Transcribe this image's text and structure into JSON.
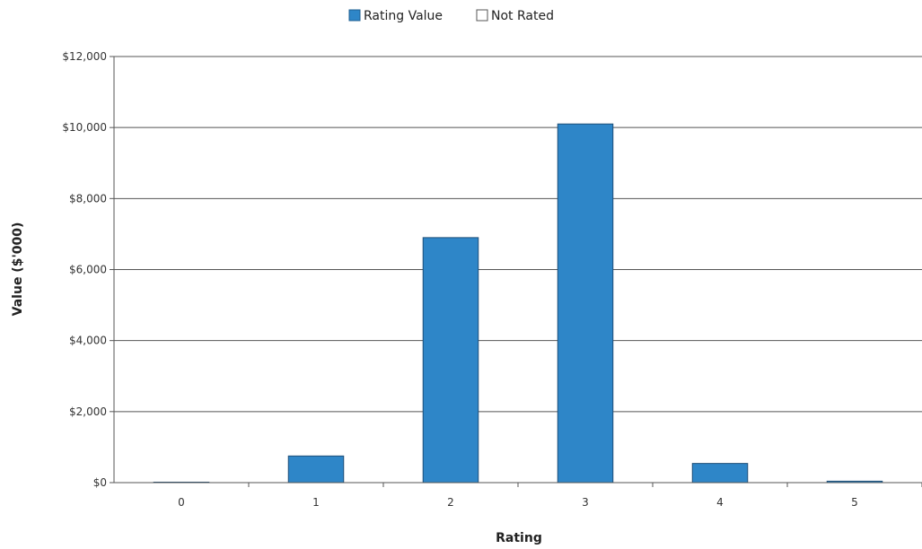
{
  "chart_data": {
    "type": "bar",
    "categories": [
      "0",
      "1",
      "2",
      "3",
      "4",
      "5"
    ],
    "series": [
      {
        "name": "Rating Value",
        "color": "#2e86c8",
        "values": [
          0,
          750,
          6900,
          10100,
          540,
          40
        ]
      },
      {
        "name": "Not Rated",
        "color": "#ffffff",
        "values": [
          0,
          0,
          0,
          0,
          0,
          0
        ]
      }
    ],
    "xlabel": "Rating",
    "ylabel": "Value ($'000)",
    "ylim": [
      0,
      12000
    ],
    "yticks": [
      {
        "value": 0,
        "label": "$0"
      },
      {
        "value": 2000,
        "label": "$2,000"
      },
      {
        "value": 4000,
        "label": "$4,000"
      },
      {
        "value": 6000,
        "label": "$6,000"
      },
      {
        "value": 8000,
        "label": "$8,000"
      },
      {
        "value": 10000,
        "label": "$10,000"
      },
      {
        "value": 12000,
        "label": "$12,000"
      }
    ],
    "grid": true,
    "legend_position": "top-center"
  }
}
